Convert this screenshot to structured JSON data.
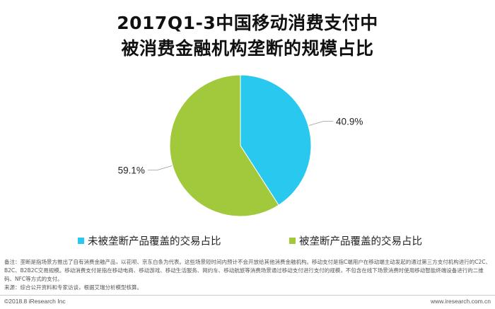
{
  "title": {
    "line1": "2017Q1-3中国移动消费支付中",
    "line2": "被消费金融机构垄断的规模占比"
  },
  "chart_data": {
    "type": "pie",
    "categories": [
      "未被垄断产品覆盖的交易占比",
      "被垄断产品覆盖的交易占比"
    ],
    "values": [
      40.9,
      59.1
    ],
    "value_labels": [
      "40.9%",
      "59.1%"
    ],
    "colors": [
      "#29c9ef",
      "#a2c93c"
    ],
    "legend_position": "bottom"
  },
  "notes": {
    "note": "备注：垄断是指场景方推出了自有消费金融产品，以花呗、京东白条为代表。这些场景短时间内预计不会开放给其他消费金融机构。移动支付是指C端用户在移动端主动发起的通过第三方支付机构进行的C2C、B2C、B2B2C交易规模。移动消费支付是指在移动电商、移动游戏、移动生活服务、网约车、移动航旅等消费场景通过移动支付进行支付的规模，不包含在线下场景消费时使用移动智能终端设备进行的二维码、NFC等方式的支付。",
    "source": "来源：综合公开资料和专家访谈，根据艾瑞分析模型核算。"
  },
  "footer": {
    "left": "©2018.8 iResearch Inc",
    "right": "www.iresearch.com.cn"
  }
}
